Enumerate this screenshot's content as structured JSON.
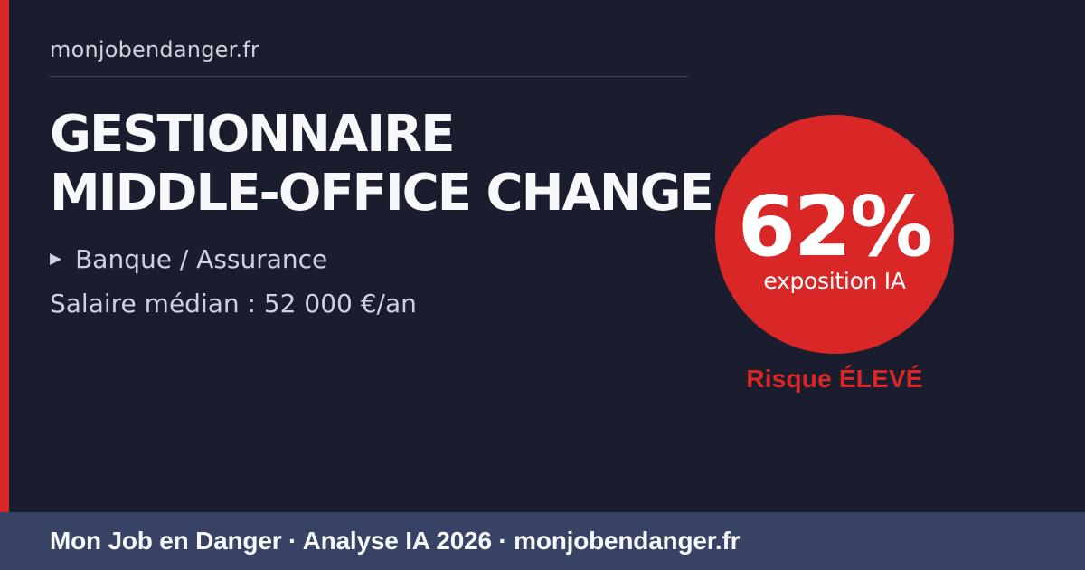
{
  "header": {
    "domain": "monjobendanger.fr"
  },
  "job": {
    "title_line1": "GESTIONNAIRE",
    "title_line2": "MIDDLE-OFFICE CHANGE",
    "sector": "Banque / Assurance",
    "salary": "Salaire médian : 52 000 €/an"
  },
  "exposure": {
    "percent": "62%",
    "label": "exposition IA",
    "risk_label": "Risque ÉLEVÉ"
  },
  "footer": {
    "text": "Mon Job en Danger · Analyse IA 2026 · monjobendanger.fr"
  },
  "icons": {
    "sector_bullet": "▶"
  },
  "colors": {
    "bg": "#1a1d2e",
    "accent": "#d92727",
    "footer-bg": "#374264",
    "divider": "#3a425c",
    "muted": "#ccd3df",
    "white": "#f7f8fa"
  }
}
